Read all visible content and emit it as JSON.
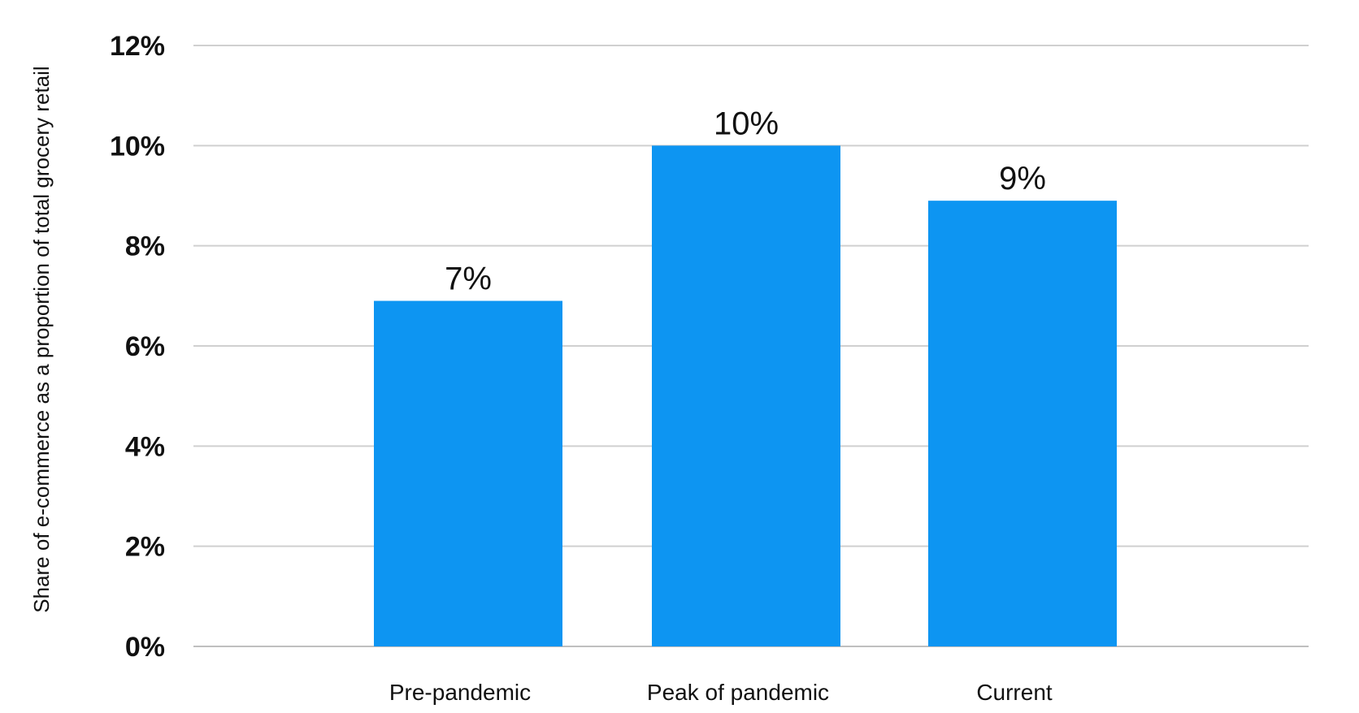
{
  "chart_data": {
    "type": "bar",
    "title": "",
    "xlabel": "",
    "ylabel": "Share of e-commerce as a proportion of total grocery retail",
    "categories": [
      "Pre-pandemic",
      "Peak of pandemic",
      "Current"
    ],
    "values": [
      6.9,
      10.0,
      8.9
    ],
    "data_labels": [
      "7%",
      "10%",
      "9%"
    ],
    "ylim": [
      0,
      12
    ],
    "yticks": [
      0,
      2,
      4,
      6,
      8,
      10,
      12
    ],
    "ytick_labels": [
      "0%",
      "2%",
      "4%",
      "6%",
      "8%",
      "10%",
      "12%"
    ],
    "grid": true,
    "legend": "none",
    "colors": {
      "bar": "#0d95f2",
      "grid": "#d0d0d0",
      "text": "#111111"
    }
  }
}
